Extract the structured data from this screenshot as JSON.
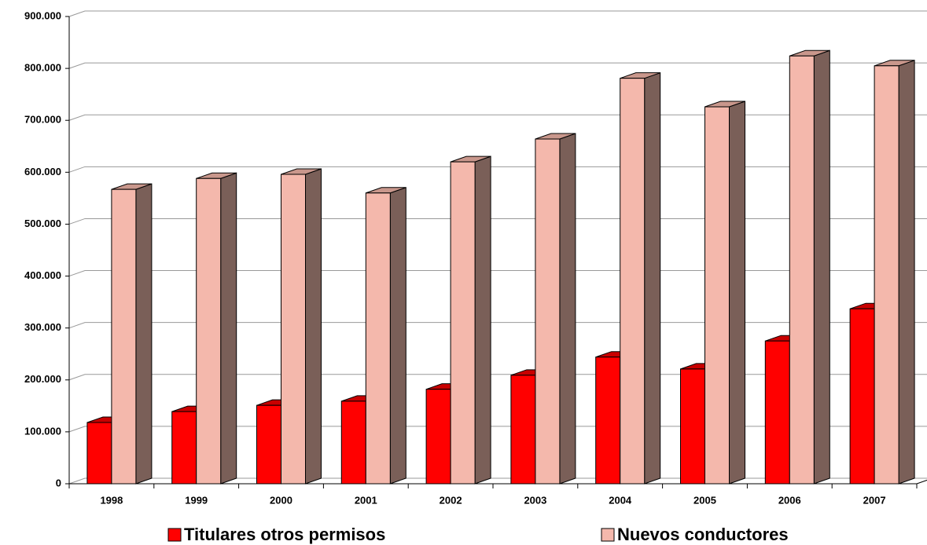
{
  "chart_data": {
    "type": "bar3d",
    "categories": [
      "1998",
      "1999",
      "2000",
      "2001",
      "2002",
      "2003",
      "2004",
      "2005",
      "2006",
      "2007"
    ],
    "series": [
      {
        "name": "Titulares otros permisos",
        "color": "#ff0000",
        "side_color": "#a80000",
        "top_color": "#c80000",
        "values": [
          118000,
          139000,
          151000,
          159000,
          182000,
          209000,
          244000,
          221000,
          275000,
          337000
        ]
      },
      {
        "name": "Nuevos conductores",
        "color": "#f4b8ac",
        "side_color": "#7a5f58",
        "top_color": "#c9978c",
        "values": [
          567000,
          588000,
          596000,
          560000,
          620000,
          664000,
          781000,
          726000,
          824000,
          805000
        ]
      }
    ],
    "ylim": [
      0,
      900000
    ],
    "yticks": [
      0,
      {
        "value": 100000,
        "label": "100.000"
      },
      {
        "value": 200000,
        "label": "200.000"
      },
      {
        "value": 300000,
        "label": "300.000"
      },
      {
        "value": 400000,
        "label": "400.000"
      },
      {
        "value": 500000,
        "label": "500.000"
      },
      {
        "value": 600000,
        "label": "600.000"
      },
      {
        "value": 700000,
        "label": "700.000"
      },
      {
        "value": 800000,
        "label": "800.000"
      },
      {
        "value": 900000,
        "label": "900.000"
      }
    ],
    "grid": true,
    "legend": "bottom"
  }
}
